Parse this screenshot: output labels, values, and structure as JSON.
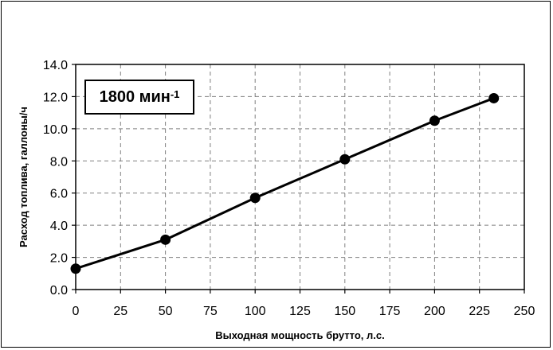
{
  "chart_data": {
    "type": "line",
    "title": "",
    "xlabel": "Выходная мощность брутто, л.с.",
    "ylabel": "Расход топлива, галлоны/ч",
    "xlim": [
      0,
      250
    ],
    "ylim": [
      0,
      14
    ],
    "x_ticks": [
      0,
      25,
      50,
      75,
      100,
      125,
      150,
      175,
      200,
      225,
      250
    ],
    "y_ticks": [
      0,
      2,
      4,
      6,
      8,
      10,
      12,
      14
    ],
    "x_tick_labels": [
      "0",
      "25",
      "50",
      "75",
      "100",
      "125",
      "150",
      "175",
      "200",
      "225",
      "250"
    ],
    "y_tick_labels": [
      "0.0",
      "2.0",
      "4.0",
      "6.0",
      "8.0",
      "10.0",
      "12.0",
      "14.0"
    ],
    "grid": true,
    "annotation": {
      "text": "1800 мин",
      "superscript": "-1"
    },
    "series": [
      {
        "x": [
          0,
          50,
          100,
          150,
          200,
          233
        ],
        "y": [
          1.3,
          3.1,
          5.7,
          8.1,
          10.5,
          11.9
        ]
      }
    ],
    "colors": {
      "line": "#000000",
      "grid": "#808080",
      "frame": "#000000"
    }
  }
}
